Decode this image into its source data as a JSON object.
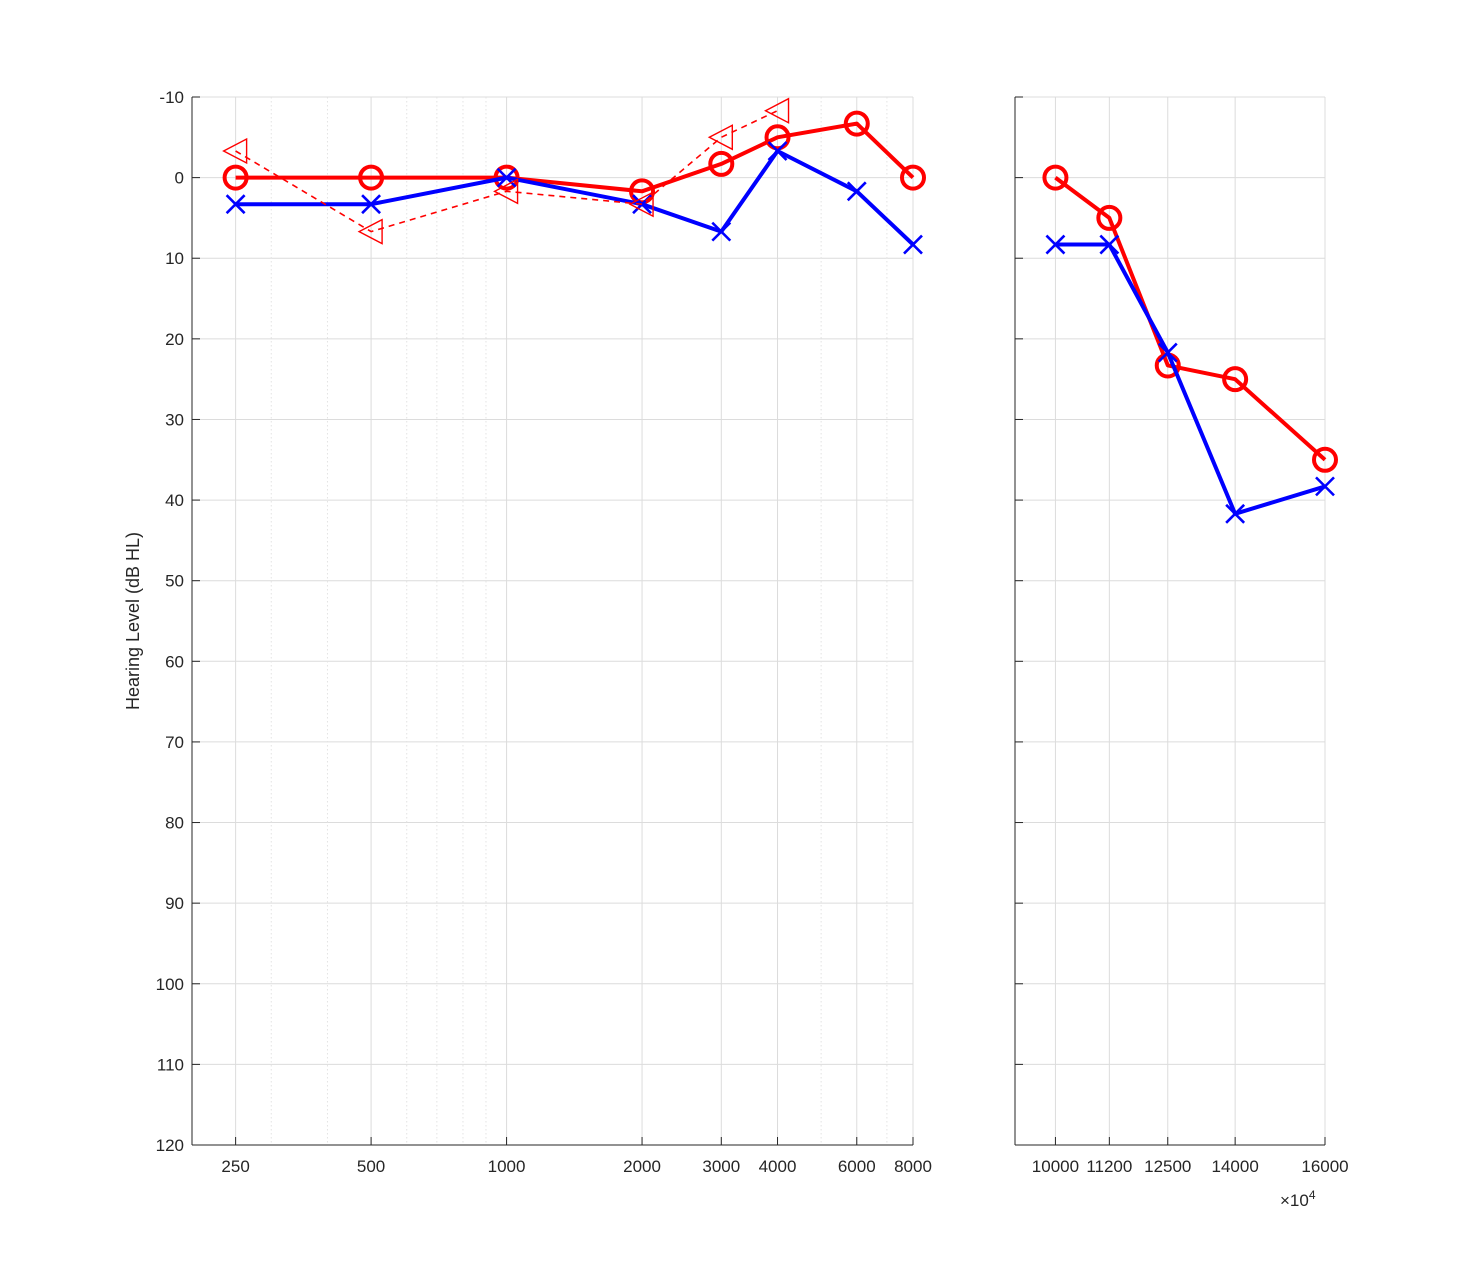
{
  "chart_data": [
    {
      "type": "line",
      "ylabel": "Hearing Level (dB HL)",
      "ylim": [
        -10,
        120
      ],
      "y_reversed": true,
      "y_ticks": [
        -10,
        0,
        10,
        20,
        30,
        40,
        50,
        60,
        70,
        80,
        90,
        100,
        110,
        120
      ],
      "x_scale": "log",
      "xlim": [
        200,
        8000
      ],
      "x_ticks": [
        250,
        500,
        1000,
        2000,
        3000,
        4000,
        6000,
        8000
      ],
      "x_tick_labels": [
        "250",
        "500",
        "1000",
        "2000",
        "3000",
        "4000",
        "6000",
        "8000"
      ],
      "grid": true,
      "series": [
        {
          "marker": "circle",
          "color": "#ff0000",
          "line": "solid",
          "x": [
            250,
            500,
            1000,
            2000,
            3000,
            4000,
            6000,
            8000
          ],
          "y": [
            0,
            0,
            0,
            1.7,
            -1.7,
            -5,
            -6.7,
            0
          ]
        },
        {
          "marker": "x",
          "color": "#0000ff",
          "line": "solid",
          "x": [
            250,
            500,
            1000,
            2000,
            3000,
            4000,
            6000,
            8000
          ],
          "y": [
            3.3,
            3.3,
            0,
            3.3,
            6.7,
            -3.3,
            1.7,
            8.3
          ]
        },
        {
          "marker": "triangle-left",
          "color": "#ff0000",
          "line": "dashed",
          "x": [
            250,
            500,
            1000,
            2000,
            3000,
            4000
          ],
          "y": [
            -3.3,
            6.7,
            1.7,
            3.3,
            -5,
            -8.3
          ]
        }
      ]
    },
    {
      "type": "line",
      "ylim": [
        -10,
        120
      ],
      "y_reversed": true,
      "x_scale": "linear",
      "xlim": [
        9100,
        16000
      ],
      "x_ticks": [
        10000,
        11200,
        12500,
        14000,
        16000
      ],
      "x_tick_labels": [
        "10000",
        "11200",
        "12500",
        "14000",
        "16000"
      ],
      "x_multiplier_prefix": "×10",
      "x_multiplier_exponent": "4",
      "grid": true,
      "series": [
        {
          "marker": "circle",
          "color": "#ff0000",
          "line": "solid",
          "x": [
            10000,
            11200,
            12500,
            14000,
            16000
          ],
          "y": [
            0,
            5,
            23.3,
            25,
            35
          ]
        },
        {
          "marker": "x",
          "color": "#0000ff",
          "line": "solid",
          "x": [
            10000,
            11200,
            12500,
            14000,
            16000
          ],
          "y": [
            8.3,
            8.3,
            21.7,
            41.7,
            38.3
          ]
        }
      ]
    }
  ]
}
